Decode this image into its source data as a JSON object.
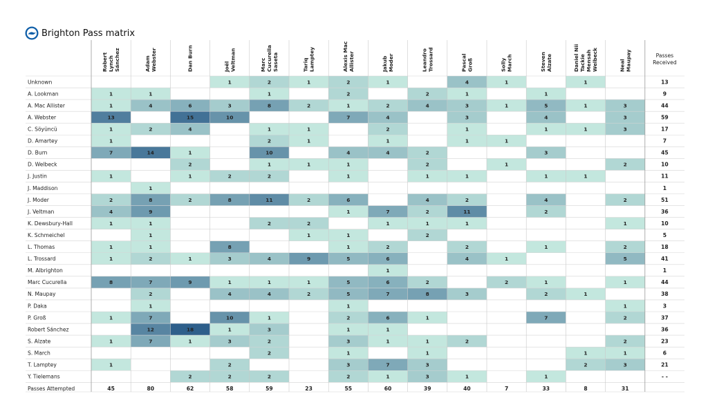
{
  "page": {
    "title": "Brighton Pass matrix",
    "logo_icon": "brighton-crest-icon"
  },
  "chart_data": {
    "type": "heatmap",
    "title": "Brighton Pass matrix",
    "columns": [
      "Robert Lynch Sánchez",
      "Adam Webster",
      "Dan Burn",
      "Joël Veltman",
      "Marc Cucurella Saseta",
      "Tariq Lamptey",
      "Alexis Mac Allister",
      "Jakub Moder",
      "Leandro Trossard",
      "Pascal Groß",
      "Solly March",
      "Steven Alzate",
      "Daniel Nii Tackie Mensah Welbeck",
      "Neal Maupay"
    ],
    "columns_display": [
      [
        "Robert",
        "Lynch",
        "Sánchez"
      ],
      [
        "Adam",
        "Webster"
      ],
      [
        "Dan Burn"
      ],
      [
        "Joël",
        "Veltman"
      ],
      [
        "Marc",
        "Cucurella",
        "Saseta"
      ],
      [
        "Tariq",
        "Lamptey"
      ],
      [
        "Alexis Mac",
        "Allister"
      ],
      [
        "Jakub",
        "Moder"
      ],
      [
        "Leandro",
        "Trossard"
      ],
      [
        "Pascal",
        "Groß"
      ],
      [
        "Solly",
        "March"
      ],
      [
        "Steven",
        "Alzate"
      ],
      [
        "Daniel Nii",
        "Tackie",
        "Mensah",
        "Welbeck"
      ],
      [
        "Neal",
        "Maupay"
      ]
    ],
    "received_header": [
      "Passes",
      "Received"
    ],
    "attempted_label": "Passes Attempted",
    "rows": [
      "Unknown",
      "A. Lookman",
      "A. Mac Allister",
      "A. Webster",
      "C. Söyüncü",
      "D. Amartey",
      "D. Burn",
      "D. Welbeck",
      "J. Justin",
      "J. Maddison",
      "J. Moder",
      "J. Veltman",
      "K. Dewsbury-Hall",
      "K. Schmeichel",
      "L. Thomas",
      "L. Trossard",
      "M. Albrighton",
      "Marc Cucurella",
      "N. Maupay",
      "P. Daka",
      "P. Groß",
      "Robert Sánchez",
      "S. Alzate",
      "S. March",
      "T. Lamptey",
      "Y. Tielemans"
    ],
    "values": [
      [
        null,
        null,
        null,
        1,
        2,
        1,
        2,
        1,
        null,
        4,
        1,
        null,
        1,
        null
      ],
      [
        1,
        1,
        null,
        null,
        1,
        null,
        2,
        null,
        2,
        1,
        null,
        1,
        null,
        null
      ],
      [
        1,
        4,
        6,
        3,
        8,
        2,
        1,
        2,
        4,
        3,
        1,
        5,
        1,
        3
      ],
      [
        13,
        null,
        15,
        10,
        null,
        null,
        7,
        4,
        null,
        3,
        null,
        4,
        null,
        3
      ],
      [
        1,
        2,
        4,
        null,
        1,
        1,
        null,
        2,
        null,
        1,
        null,
        1,
        1,
        3
      ],
      [
        1,
        null,
        null,
        null,
        2,
        1,
        null,
        1,
        null,
        1,
        1,
        null,
        null,
        null
      ],
      [
        7,
        14,
        1,
        null,
        10,
        null,
        4,
        4,
        2,
        null,
        null,
        3,
        null,
        null
      ],
      [
        null,
        null,
        2,
        null,
        1,
        1,
        1,
        null,
        2,
        null,
        1,
        null,
        null,
        2
      ],
      [
        1,
        null,
        1,
        2,
        2,
        null,
        1,
        null,
        1,
        1,
        null,
        1,
        1,
        null
      ],
      [
        null,
        1,
        null,
        null,
        null,
        null,
        null,
        null,
        null,
        null,
        null,
        null,
        null,
        null
      ],
      [
        2,
        8,
        2,
        8,
        11,
        2,
        6,
        null,
        4,
        2,
        null,
        4,
        null,
        2
      ],
      [
        4,
        9,
        null,
        null,
        null,
        null,
        1,
        7,
        2,
        11,
        null,
        2,
        null,
        null
      ],
      [
        1,
        1,
        null,
        null,
        2,
        2,
        null,
        1,
        1,
        1,
        null,
        null,
        null,
        1
      ],
      [
        null,
        1,
        null,
        null,
        null,
        1,
        1,
        null,
        2,
        null,
        null,
        null,
        null,
        null
      ],
      [
        1,
        1,
        null,
        8,
        null,
        null,
        1,
        2,
        null,
        2,
        null,
        1,
        null,
        2
      ],
      [
        1,
        2,
        1,
        3,
        4,
        9,
        5,
        6,
        null,
        4,
        1,
        null,
        null,
        5
      ],
      [
        null,
        null,
        null,
        null,
        null,
        null,
        null,
        1,
        null,
        null,
        null,
        null,
        null,
        null
      ],
      [
        8,
        7,
        9,
        1,
        1,
        1,
        5,
        6,
        2,
        null,
        2,
        1,
        null,
        1
      ],
      [
        null,
        2,
        null,
        4,
        4,
        2,
        5,
        7,
        8,
        3,
        null,
        2,
        1,
        null
      ],
      [
        null,
        1,
        null,
        null,
        null,
        null,
        1,
        null,
        null,
        null,
        null,
        null,
        null,
        1
      ],
      [
        1,
        7,
        null,
        10,
        1,
        null,
        2,
        6,
        1,
        null,
        null,
        7,
        null,
        2
      ],
      [
        null,
        12,
        18,
        1,
        3,
        null,
        1,
        1,
        null,
        null,
        null,
        null,
        null,
        null
      ],
      [
        1,
        7,
        1,
        3,
        2,
        null,
        3,
        1,
        1,
        2,
        null,
        null,
        null,
        2
      ],
      [
        null,
        null,
        null,
        null,
        2,
        null,
        1,
        null,
        1,
        null,
        null,
        null,
        1,
        1
      ],
      [
        1,
        null,
        null,
        2,
        null,
        null,
        3,
        7,
        3,
        null,
        null,
        null,
        2,
        3
      ],
      [
        null,
        null,
        2,
        2,
        2,
        null,
        2,
        1,
        3,
        1,
        null,
        1,
        null,
        null
      ]
    ],
    "passes_received": [
      "13",
      "9",
      "44",
      "59",
      "17",
      "7",
      "45",
      "10",
      "11",
      "1",
      "51",
      "36",
      "10",
      "5",
      "18",
      "41",
      "1",
      "44",
      "38",
      "3",
      "37",
      "36",
      "23",
      "6",
      "21",
      "- -"
    ],
    "passes_attempted": [
      45,
      80,
      62,
      58,
      59,
      23,
      55,
      60,
      39,
      40,
      7,
      33,
      8,
      31
    ],
    "color_scale": {
      "low": "#c3e7de",
      "high": "#2e5f8b",
      "max": 18
    },
    "grid": false
  }
}
